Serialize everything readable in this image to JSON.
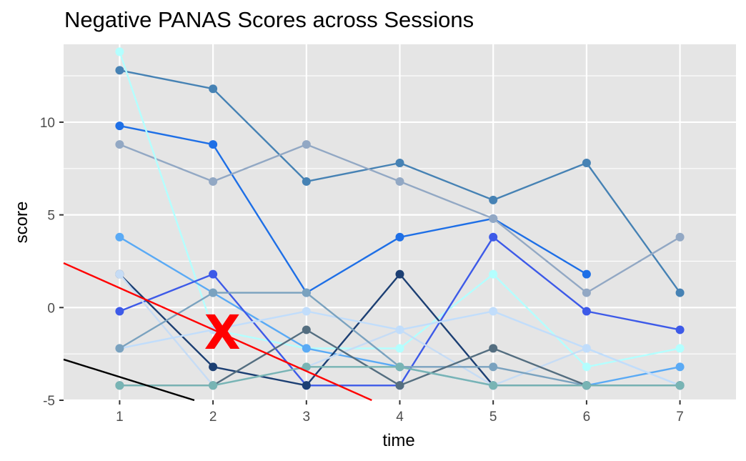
{
  "chart_data": {
    "type": "line",
    "title": "Negative PANAS Scores across Sessions",
    "xlabel": "time",
    "ylabel": "score",
    "x": [
      1,
      2,
      3,
      4,
      5,
      6,
      7
    ],
    "xlim": [
      0.4,
      7.6
    ],
    "ylim": [
      -5,
      14.2
    ],
    "y_ticks": [
      -5,
      0,
      5,
      10
    ],
    "grid": true,
    "legend": "none",
    "panel_background": "#e5e5e5",
    "grid_color": "#ffffff",
    "series": [
      {
        "color": "#4682b4",
        "values": [
          12.8,
          11.8,
          6.8,
          7.8,
          5.8,
          7.8,
          0.8
        ]
      },
      {
        "color": "#1e6fe6",
        "values": [
          9.8,
          8.8,
          0.8,
          3.8,
          4.8,
          1.8,
          null
        ]
      },
      {
        "color": "#92a8c4",
        "values": [
          8.8,
          6.8,
          8.8,
          6.8,
          4.8,
          0.8,
          3.8
        ]
      },
      {
        "color": "#b3ffff",
        "values": [
          13.8,
          -1.2,
          -2.2,
          -2.2,
          1.8,
          -3.2,
          -2.2
        ]
      },
      {
        "color": "#5aaaf5",
        "values": [
          3.8,
          0.8,
          -2.2,
          -3.2,
          -4.2,
          -4.2,
          -3.2
        ]
      },
      {
        "color": "#3d5ae8",
        "values": [
          -0.2,
          1.8,
          -4.2,
          -4.2,
          3.8,
          -0.2,
          -1.2
        ]
      },
      {
        "color": "#1c3f73",
        "values": [
          1.8,
          -3.2,
          -4.2,
          1.8,
          -4.2,
          -4.2,
          -4.2
        ]
      },
      {
        "color": "#c6dcf5",
        "values": [
          1.8,
          -4.2,
          -3.2,
          -1.2,
          -4.2,
          -2.2,
          -4.2
        ]
      },
      {
        "color": "#c1ddfb",
        "values": [
          -2.2,
          -1.2,
          -0.2,
          -1.2,
          -0.2,
          -2.2,
          -4.2
        ]
      },
      {
        "color": "#7aa2bf",
        "values": [
          -2.2,
          0.8,
          0.8,
          -3.2,
          -3.2,
          -4.2,
          -4.2
        ]
      },
      {
        "color": "#546e80",
        "values": [
          -4.2,
          -4.2,
          -1.2,
          -4.2,
          -2.2,
          -4.2,
          -4.2
        ]
      },
      {
        "color": "#78b4b4",
        "values": [
          -4.2,
          -4.2,
          -3.2,
          -3.2,
          -4.2,
          -4.2,
          -4.2
        ]
      }
    ],
    "overlay_lines": [
      {
        "color": "#ff0000",
        "from": [
          0.4,
          2.4
        ],
        "to": [
          3.7,
          -5.0
        ]
      },
      {
        "color": "#000000",
        "from": [
          0.4,
          -2.8
        ],
        "to": [
          1.8,
          -5.0
        ]
      }
    ],
    "annotations": [
      {
        "text": "X",
        "color": "#ff0000",
        "x": 2.1,
        "y": -1.3
      }
    ]
  }
}
